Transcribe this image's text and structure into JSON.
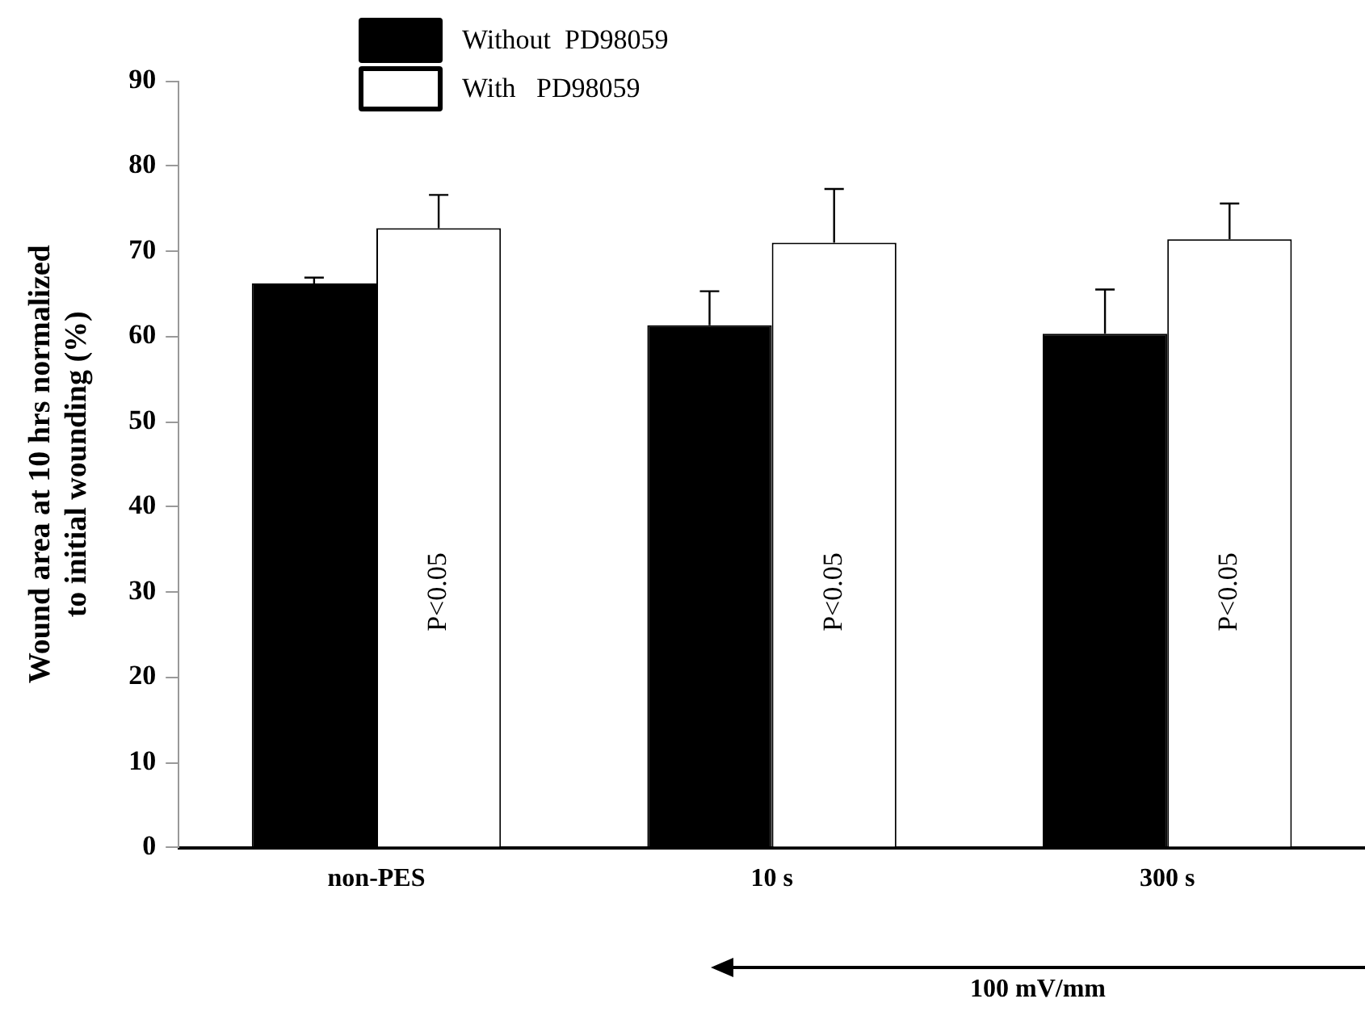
{
  "chart_data": {
    "type": "bar",
    "ylabel": "Wound area at 10 hrs normalized to initial wounding (%)",
    "categories": [
      "non-PES",
      "10 s",
      "300 s"
    ],
    "series": [
      {
        "name": "Without  PD98059",
        "color": "#000000",
        "values": [
          66.2,
          61.3,
          60.3
        ],
        "errors": [
          0.7,
          4.0,
          5.2
        ]
      },
      {
        "name": "With   PD98059",
        "color": "#ffffff",
        "values": [
          72.7,
          71.0,
          71.4
        ],
        "errors": [
          3.9,
          6.3,
          4.2
        ]
      }
    ],
    "ylim": [
      0,
      90
    ],
    "yticks": [
      0,
      10,
      20,
      30,
      40,
      50,
      60,
      70,
      80,
      90
    ],
    "grid": false,
    "legend": "top left",
    "annotations": [
      {
        "text": "P<0.05",
        "x": "non-PES",
        "y": 30
      },
      {
        "text": "P<0.05",
        "x": "10 s",
        "y": 30
      },
      {
        "text": "P<0.05",
        "x": "300 s",
        "y": 30
      },
      "100 mV/mm"
    ]
  }
}
